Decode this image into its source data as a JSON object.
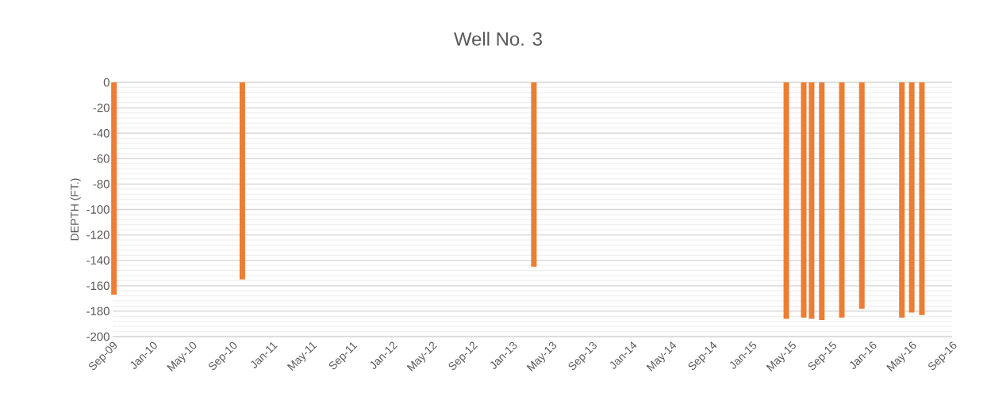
{
  "chart_data": {
    "type": "bar",
    "title": "Well No. 3",
    "ylabel": "DEPTH (FT.)",
    "x": [
      "2009-09-05",
      "2010-10-01",
      "2013-03-07",
      "2015-04-15",
      "2015-06-07",
      "2015-07-01",
      "2015-08-01",
      "2015-10-01",
      "2015-12-01",
      "2016-04-01",
      "2016-05-01",
      "2016-06-01"
    ],
    "values": [
      -167,
      -155,
      -145,
      -186,
      -185,
      -186,
      -187,
      -185,
      -178,
      -185,
      -181,
      -183
    ],
    "color": "#ed7d31",
    "xlim": [
      "2009-09-01",
      "2016-09-01"
    ],
    "xticks": [
      {
        "value": "2009-09-01",
        "label": "Sep-09"
      },
      {
        "value": "2010-01-01",
        "label": "Jan-10"
      },
      {
        "value": "2010-05-01",
        "label": "May-10"
      },
      {
        "value": "2010-09-01",
        "label": "Sep-10"
      },
      {
        "value": "2011-01-01",
        "label": "Jan-11"
      },
      {
        "value": "2011-05-01",
        "label": "May-11"
      },
      {
        "value": "2011-09-01",
        "label": "Sep-11"
      },
      {
        "value": "2012-01-01",
        "label": "Jan-12"
      },
      {
        "value": "2012-05-01",
        "label": "May-12"
      },
      {
        "value": "2012-09-01",
        "label": "Sep-12"
      },
      {
        "value": "2013-01-01",
        "label": "Jan-13"
      },
      {
        "value": "2013-05-01",
        "label": "May-13"
      },
      {
        "value": "2013-09-01",
        "label": "Sep-13"
      },
      {
        "value": "2014-01-01",
        "label": "Jan-14"
      },
      {
        "value": "2014-05-01",
        "label": "May-14"
      },
      {
        "value": "2014-09-01",
        "label": "Sep-14"
      },
      {
        "value": "2015-01-01",
        "label": "Jan-15"
      },
      {
        "value": "2015-05-01",
        "label": "May-15"
      },
      {
        "value": "2015-09-01",
        "label": "Sep-15"
      },
      {
        "value": "2016-01-01",
        "label": "Jan-16"
      },
      {
        "value": "2016-05-01",
        "label": "May-16"
      },
      {
        "value": "2016-09-01",
        "label": "Sep-16"
      }
    ],
    "ylim": [
      -200,
      0
    ],
    "yticks": [
      0,
      -20,
      -40,
      -60,
      -80,
      -100,
      -120,
      -140,
      -160,
      -180,
      -200
    ],
    "grid": "y"
  }
}
